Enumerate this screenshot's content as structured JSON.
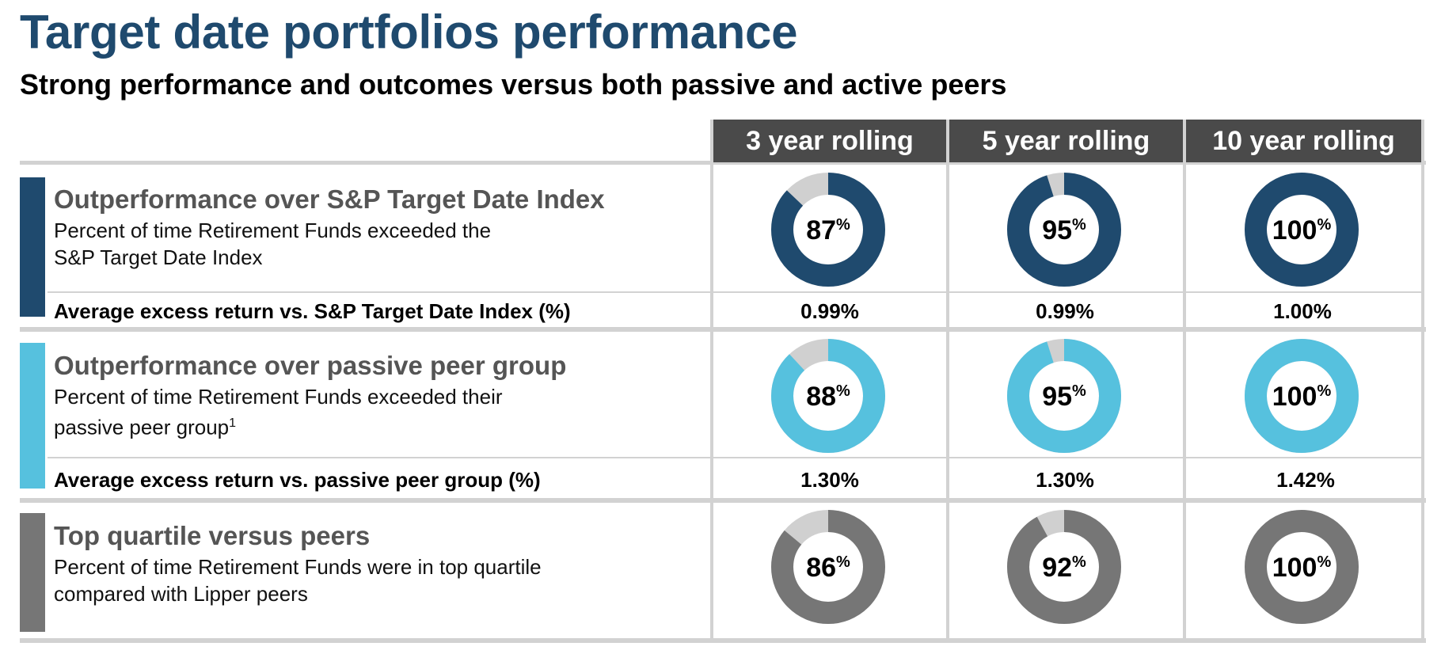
{
  "title": "Target date portfolios performance",
  "subtitle": "Strong performance and outcomes versus both passive and active peers",
  "colors": {
    "title": "#1f4a6e",
    "sp_index": "#1f4a6e",
    "passive": "#56c1de",
    "quartile": "#767676",
    "remainder": "#d0d0d0",
    "header_bg": "#4a4a4a"
  },
  "columns": [
    "3 year rolling",
    "5 year rolling",
    "10 year rolling"
  ],
  "sections": [
    {
      "title": "Outperformance over S&P Target Date Index",
      "desc_lines": [
        "Percent of time Retirement Funds exceeded the",
        "S&P Target Date Index"
      ],
      "desc_sup": "",
      "avg_label": "Average excess return vs. S&P Target Date Index (%)",
      "avg_values": [
        "0.99%",
        "0.99%",
        "1.00%"
      ]
    },
    {
      "title": "Outperformance over passive peer group",
      "desc_lines": [
        "Percent of time Retirement Funds exceeded their",
        "passive peer group"
      ],
      "desc_sup": "1",
      "avg_label": "Average excess return vs. passive peer group (%)",
      "avg_values": [
        "1.30%",
        "1.30%",
        "1.42%"
      ]
    },
    {
      "title": "Top quartile versus peers",
      "desc_lines": [
        "Percent of time Retirement Funds were in top quartile",
        "compared with Lipper peers"
      ],
      "desc_sup": "",
      "avg_label": "",
      "avg_values": []
    }
  ],
  "chart_data": {
    "type": "pie",
    "variant": "donut",
    "categories": [
      "3 year rolling",
      "5 year rolling",
      "10 year rolling"
    ],
    "value_unit": "%",
    "series": [
      {
        "name": "Outperformance over S&P Target Date Index",
        "values": [
          87,
          95,
          100
        ],
        "color": "#1f4a6e"
      },
      {
        "name": "Outperformance over passive peer group",
        "values": [
          88,
          95,
          100
        ],
        "color": "#56c1de"
      },
      {
        "name": "Top quartile versus peers",
        "values": [
          86,
          92,
          100
        ],
        "color": "#767676"
      }
    ]
  }
}
